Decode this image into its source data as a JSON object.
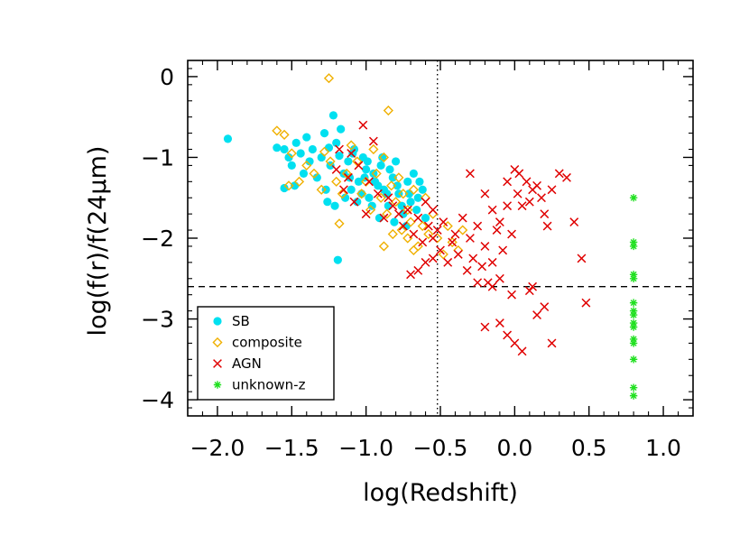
{
  "chart_data": {
    "type": "scatter",
    "xlabel": "log(Redshift)",
    "ylabel": "log(f(r)/f(24μm)",
    "xlim": [
      -2.2,
      1.2
    ],
    "ylim": [
      -4.2,
      0.2
    ],
    "xticks": [
      -2.0,
      -1.5,
      -1.0,
      -0.5,
      0.0,
      0.5,
      1.0
    ],
    "xtick_labels": [
      "−2.0",
      "−1.5",
      "−1.0",
      "−0.5",
      "0.0",
      "0.5",
      "1.0"
    ],
    "yticks": [
      0,
      -1,
      -2,
      -3,
      -4
    ],
    "ytick_labels": [
      "0",
      "−1",
      "−2",
      "−3",
      "−4"
    ],
    "grid": false,
    "legend_position": "bottom-left",
    "reference_lines": [
      {
        "orientation": "vertical",
        "value": -0.52,
        "style": "dotted"
      },
      {
        "orientation": "horizontal",
        "value": -2.6,
        "style": "dashed"
      }
    ],
    "series": [
      {
        "name": "SB",
        "marker": "filled-circle",
        "color": "#00e0f0",
        "points": [
          [
            -1.93,
            -0.77
          ],
          [
            -1.6,
            -0.88
          ],
          [
            -1.55,
            -0.9
          ],
          [
            -1.52,
            -1.0
          ],
          [
            -1.5,
            -1.1
          ],
          [
            -1.47,
            -0.82
          ],
          [
            -1.44,
            -0.95
          ],
          [
            -1.42,
            -1.2
          ],
          [
            -1.4,
            -0.75
          ],
          [
            -1.38,
            -1.05
          ],
          [
            -1.55,
            -1.38
          ],
          [
            -1.48,
            -1.35
          ],
          [
            -1.28,
            -0.7
          ],
          [
            -1.25,
            -0.88
          ],
          [
            -1.22,
            -0.48
          ],
          [
            -1.2,
            -0.82
          ],
          [
            -1.18,
            -0.98
          ],
          [
            -1.15,
            -1.2
          ],
          [
            -1.12,
            -1.05
          ],
          [
            -1.1,
            -1.4
          ],
          [
            -1.08,
            -0.9
          ],
          [
            -1.05,
            -1.3
          ],
          [
            -1.02,
            -1.0
          ],
          [
            -1.0,
            -1.15
          ],
          [
            -0.98,
            -1.5
          ],
          [
            -0.95,
            -1.2
          ],
          [
            -0.92,
            -1.35
          ],
          [
            -0.9,
            -1.1
          ],
          [
            -0.88,
            -1.4
          ],
          [
            -0.85,
            -1.6
          ],
          [
            -0.82,
            -1.25
          ],
          [
            -0.8,
            -1.05
          ],
          [
            -0.78,
            -1.45
          ],
          [
            -0.75,
            -1.7
          ],
          [
            -0.72,
            -1.3
          ],
          [
            -0.7,
            -1.55
          ],
          [
            -0.68,
            -1.2
          ],
          [
            -0.65,
            -1.5
          ],
          [
            -0.62,
            -1.4
          ],
          [
            -0.6,
            -1.75
          ],
          [
            -1.3,
            -1.0
          ],
          [
            -1.27,
            -1.4
          ],
          [
            -1.24,
            -1.1
          ],
          [
            -1.21,
            -1.6
          ],
          [
            -1.19,
            -2.27
          ],
          [
            -1.17,
            -0.65
          ],
          [
            -1.14,
            -1.5
          ],
          [
            -1.11,
            -1.25
          ],
          [
            -1.09,
            -0.95
          ],
          [
            -1.06,
            -1.55
          ],
          [
            -1.03,
            -1.45
          ],
          [
            -1.01,
            -1.25
          ],
          [
            -0.99,
            -1.05
          ],
          [
            -0.96,
            -1.6
          ],
          [
            -0.94,
            -1.3
          ],
          [
            -0.91,
            -1.75
          ],
          [
            -0.89,
            -1.0
          ],
          [
            -0.86,
            -1.45
          ],
          [
            -0.84,
            -1.15
          ],
          [
            -0.81,
            -1.8
          ],
          [
            -0.79,
            -1.35
          ],
          [
            -0.76,
            -1.6
          ],
          [
            -0.73,
            -1.85
          ],
          [
            -0.71,
            -1.45
          ],
          [
            -0.66,
            -1.65
          ],
          [
            -0.64,
            -1.3
          ],
          [
            -1.33,
            -1.25
          ],
          [
            -1.36,
            -0.9
          ],
          [
            -1.26,
            -1.55
          ]
        ]
      },
      {
        "name": "composite",
        "marker": "open-diamond",
        "color": "#f0b000",
        "points": [
          [
            -1.25,
            -0.02
          ],
          [
            -0.85,
            -0.42
          ],
          [
            -1.6,
            -0.67
          ],
          [
            -1.55,
            -0.72
          ],
          [
            -1.5,
            -0.95
          ],
          [
            -1.45,
            -1.3
          ],
          [
            -1.52,
            -1.35
          ],
          [
            -1.4,
            -1.1
          ],
          [
            -1.35,
            -1.2
          ],
          [
            -1.3,
            -1.4
          ],
          [
            -1.28,
            -0.93
          ],
          [
            -1.24,
            -1.05
          ],
          [
            -1.2,
            -1.3
          ],
          [
            -1.16,
            -1.45
          ],
          [
            -1.13,
            -1.2
          ],
          [
            -1.1,
            -0.85
          ],
          [
            -1.06,
            -1.05
          ],
          [
            -1.03,
            -1.45
          ],
          [
            -1.0,
            -1.3
          ],
          [
            -0.97,
            -1.65
          ],
          [
            -0.95,
            -0.9
          ],
          [
            -0.93,
            -1.2
          ],
          [
            -0.9,
            -1.5
          ],
          [
            -0.88,
            -1.0
          ],
          [
            -0.86,
            -1.7
          ],
          [
            -0.83,
            -1.35
          ],
          [
            -0.8,
            -1.55
          ],
          [
            -0.78,
            -1.25
          ],
          [
            -0.75,
            -1.45
          ],
          [
            -0.72,
            -1.65
          ],
          [
            -0.7,
            -1.8
          ],
          [
            -0.68,
            -1.4
          ],
          [
            -0.65,
            -2.1
          ],
          [
            -0.62,
            -1.85
          ],
          [
            -0.6,
            -1.5
          ],
          [
            -0.58,
            -1.95
          ],
          [
            -0.55,
            -1.7
          ],
          [
            -0.52,
            -2.0
          ],
          [
            -0.48,
            -2.2
          ],
          [
            -0.45,
            -1.85
          ],
          [
            -0.42,
            -2.05
          ],
          [
            -0.38,
            -2.15
          ],
          [
            -0.35,
            -1.9
          ],
          [
            -1.18,
            -1.82
          ],
          [
            -0.88,
            -2.1
          ],
          [
            -0.82,
            -1.95
          ],
          [
            -0.76,
            -1.9
          ],
          [
            -0.72,
            -2.0
          ],
          [
            -0.68,
            -2.15
          ]
        ]
      },
      {
        "name": "AGN",
        "marker": "cross",
        "color": "#e00000",
        "points": [
          [
            -1.02,
            -0.6
          ],
          [
            -0.95,
            -0.8
          ],
          [
            -1.1,
            -0.95
          ],
          [
            -1.05,
            -1.1
          ],
          [
            -0.98,
            -1.3
          ],
          [
            -1.2,
            -1.15
          ],
          [
            -1.15,
            -1.4
          ],
          [
            -1.08,
            -1.55
          ],
          [
            -1.0,
            -1.7
          ],
          [
            -0.92,
            -1.45
          ],
          [
            -0.88,
            -1.75
          ],
          [
            -0.82,
            -1.6
          ],
          [
            -0.75,
            -1.85
          ],
          [
            -0.72,
            -1.65
          ],
          [
            -0.68,
            -1.95
          ],
          [
            -0.65,
            -1.75
          ],
          [
            -0.62,
            -2.05
          ],
          [
            -0.58,
            -1.85
          ],
          [
            -0.55,
            -2.0
          ],
          [
            -0.52,
            -1.9
          ],
          [
            -0.5,
            -2.15
          ],
          [
            -0.48,
            -1.8
          ],
          [
            -0.45,
            -2.3
          ],
          [
            -0.42,
            -2.05
          ],
          [
            -0.4,
            -1.95
          ],
          [
            -0.38,
            -2.2
          ],
          [
            -0.35,
            -1.75
          ],
          [
            -0.32,
            -2.4
          ],
          [
            -0.3,
            -2.0
          ],
          [
            -0.28,
            -2.25
          ],
          [
            -0.25,
            -1.85
          ],
          [
            -0.22,
            -2.35
          ],
          [
            -0.2,
            -2.1
          ],
          [
            -0.18,
            -2.55
          ],
          [
            -0.15,
            -2.3
          ],
          [
            -0.12,
            -1.9
          ],
          [
            -0.1,
            -2.5
          ],
          [
            -0.08,
            -2.15
          ],
          [
            -0.05,
            -1.6
          ],
          [
            -0.02,
            -1.95
          ],
          [
            0.0,
            -1.15
          ],
          [
            0.02,
            -1.45
          ],
          [
            0.05,
            -1.6
          ],
          [
            0.08,
            -1.3
          ],
          [
            0.1,
            -1.55
          ],
          [
            0.12,
            -1.4
          ],
          [
            0.15,
            -1.35
          ],
          [
            0.18,
            -1.5
          ],
          [
            0.2,
            -1.7
          ],
          [
            0.22,
            -1.85
          ],
          [
            0.25,
            -1.4
          ],
          [
            0.3,
            -1.2
          ],
          [
            0.35,
            -1.25
          ],
          [
            0.4,
            -1.8
          ],
          [
            0.45,
            -2.25
          ],
          [
            -0.3,
            -1.2
          ],
          [
            -0.2,
            -1.45
          ],
          [
            -0.15,
            -1.65
          ],
          [
            -0.1,
            -1.8
          ],
          [
            -0.05,
            -1.3
          ],
          [
            -0.25,
            -2.55
          ],
          [
            -0.2,
            -3.1
          ],
          [
            -0.15,
            -2.6
          ],
          [
            -0.1,
            -3.05
          ],
          [
            -0.05,
            -3.2
          ],
          [
            0.0,
            -3.3
          ],
          [
            0.05,
            -3.4
          ],
          [
            0.1,
            -2.65
          ],
          [
            0.15,
            -2.95
          ],
          [
            0.2,
            -2.85
          ],
          [
            0.25,
            -3.3
          ],
          [
            0.48,
            -2.8
          ],
          [
            -0.65,
            -2.4
          ],
          [
            -0.6,
            -2.3
          ],
          [
            -0.55,
            -2.25
          ],
          [
            -1.18,
            -0.9
          ],
          [
            -1.12,
            -1.25
          ],
          [
            -0.85,
            -1.5
          ],
          [
            -0.78,
            -1.7
          ],
          [
            -0.7,
            -2.45
          ],
          [
            -0.6,
            -1.55
          ],
          [
            -0.55,
            -1.65
          ],
          [
            0.12,
            -2.6
          ],
          [
            -0.02,
            -2.7
          ],
          [
            0.03,
            -1.2
          ]
        ]
      },
      {
        "name": "unknown-z",
        "marker": "asterisk",
        "color": "#20e020",
        "points": [
          [
            0.8,
            -1.5
          ],
          [
            0.8,
            -2.05
          ],
          [
            0.8,
            -2.1
          ],
          [
            0.8,
            -2.45
          ],
          [
            0.8,
            -2.5
          ],
          [
            0.8,
            -2.8
          ],
          [
            0.8,
            -2.9
          ],
          [
            0.8,
            -2.95
          ],
          [
            0.8,
            -3.05
          ],
          [
            0.8,
            -3.1
          ],
          [
            0.8,
            -3.25
          ],
          [
            0.8,
            -3.3
          ],
          [
            0.8,
            -3.5
          ],
          [
            0.8,
            -3.85
          ],
          [
            0.8,
            -3.95
          ]
        ]
      }
    ]
  }
}
